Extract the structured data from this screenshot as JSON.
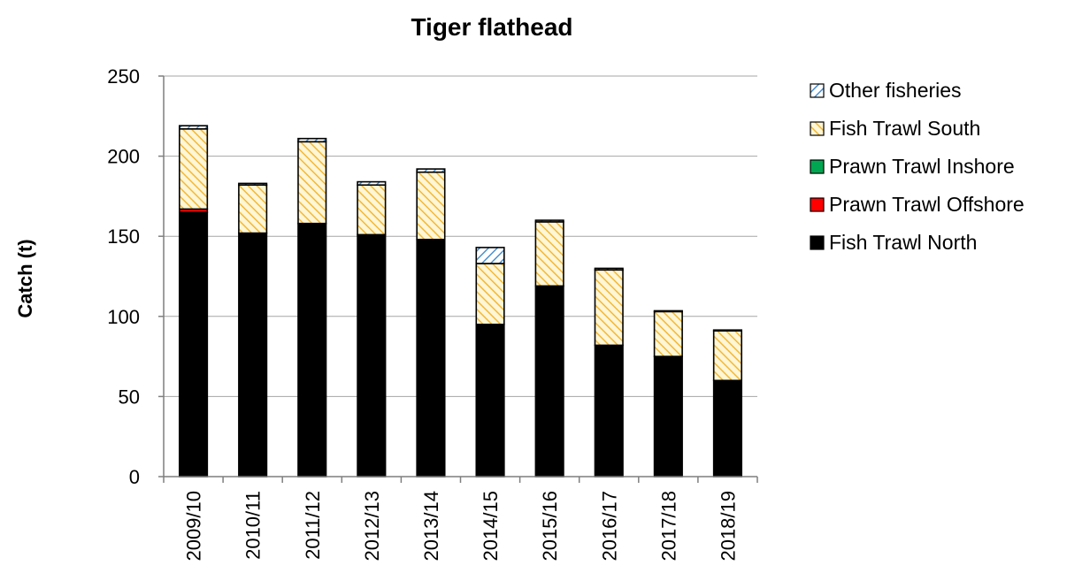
{
  "chart_data": {
    "type": "bar",
    "stacked": true,
    "title": "Tiger flathead",
    "xlabel": "",
    "ylabel": "Catch (t)",
    "ylim": [
      0,
      250
    ],
    "yticks": [
      0,
      50,
      100,
      150,
      200,
      250
    ],
    "grid": true,
    "legend_position": "right",
    "categories": [
      "2009/10",
      "2010/11",
      "2011/12",
      "2012/13",
      "2013/14",
      "2014/15",
      "2015/16",
      "2016/17",
      "2017/18",
      "2018/19"
    ],
    "series": [
      {
        "name": "Fish Trawl North",
        "color": "#000000",
        "pattern": "solid",
        "values": [
          165,
          152,
          158,
          151,
          148,
          95,
          119,
          82,
          75,
          60
        ]
      },
      {
        "name": "Prawn Trawl Offshore",
        "color": "#ff0000",
        "pattern": "solid",
        "values": [
          2,
          0,
          0,
          0,
          0,
          0,
          0,
          0,
          0,
          0
        ]
      },
      {
        "name": "Prawn Trawl Inshore",
        "color": "#00a651",
        "pattern": "solid",
        "values": [
          0,
          0,
          0,
          0,
          0,
          0,
          0,
          0,
          0,
          0
        ]
      },
      {
        "name": "Fish Trawl South",
        "color": "#f5c242",
        "pattern": "hatch",
        "values": [
          50,
          30,
          51,
          31,
          42,
          38,
          40,
          47,
          28,
          31
        ]
      },
      {
        "name": "Other fisheries",
        "color": "#5b9bd5",
        "pattern": "hatch",
        "values": [
          2,
          1,
          2,
          2,
          2,
          10,
          1,
          1,
          0.5,
          0.5
        ]
      }
    ],
    "legend_order": [
      "Other fisheries",
      "Fish Trawl South",
      "Prawn Trawl Inshore",
      "Prawn Trawl Offshore",
      "Fish Trawl North"
    ]
  }
}
